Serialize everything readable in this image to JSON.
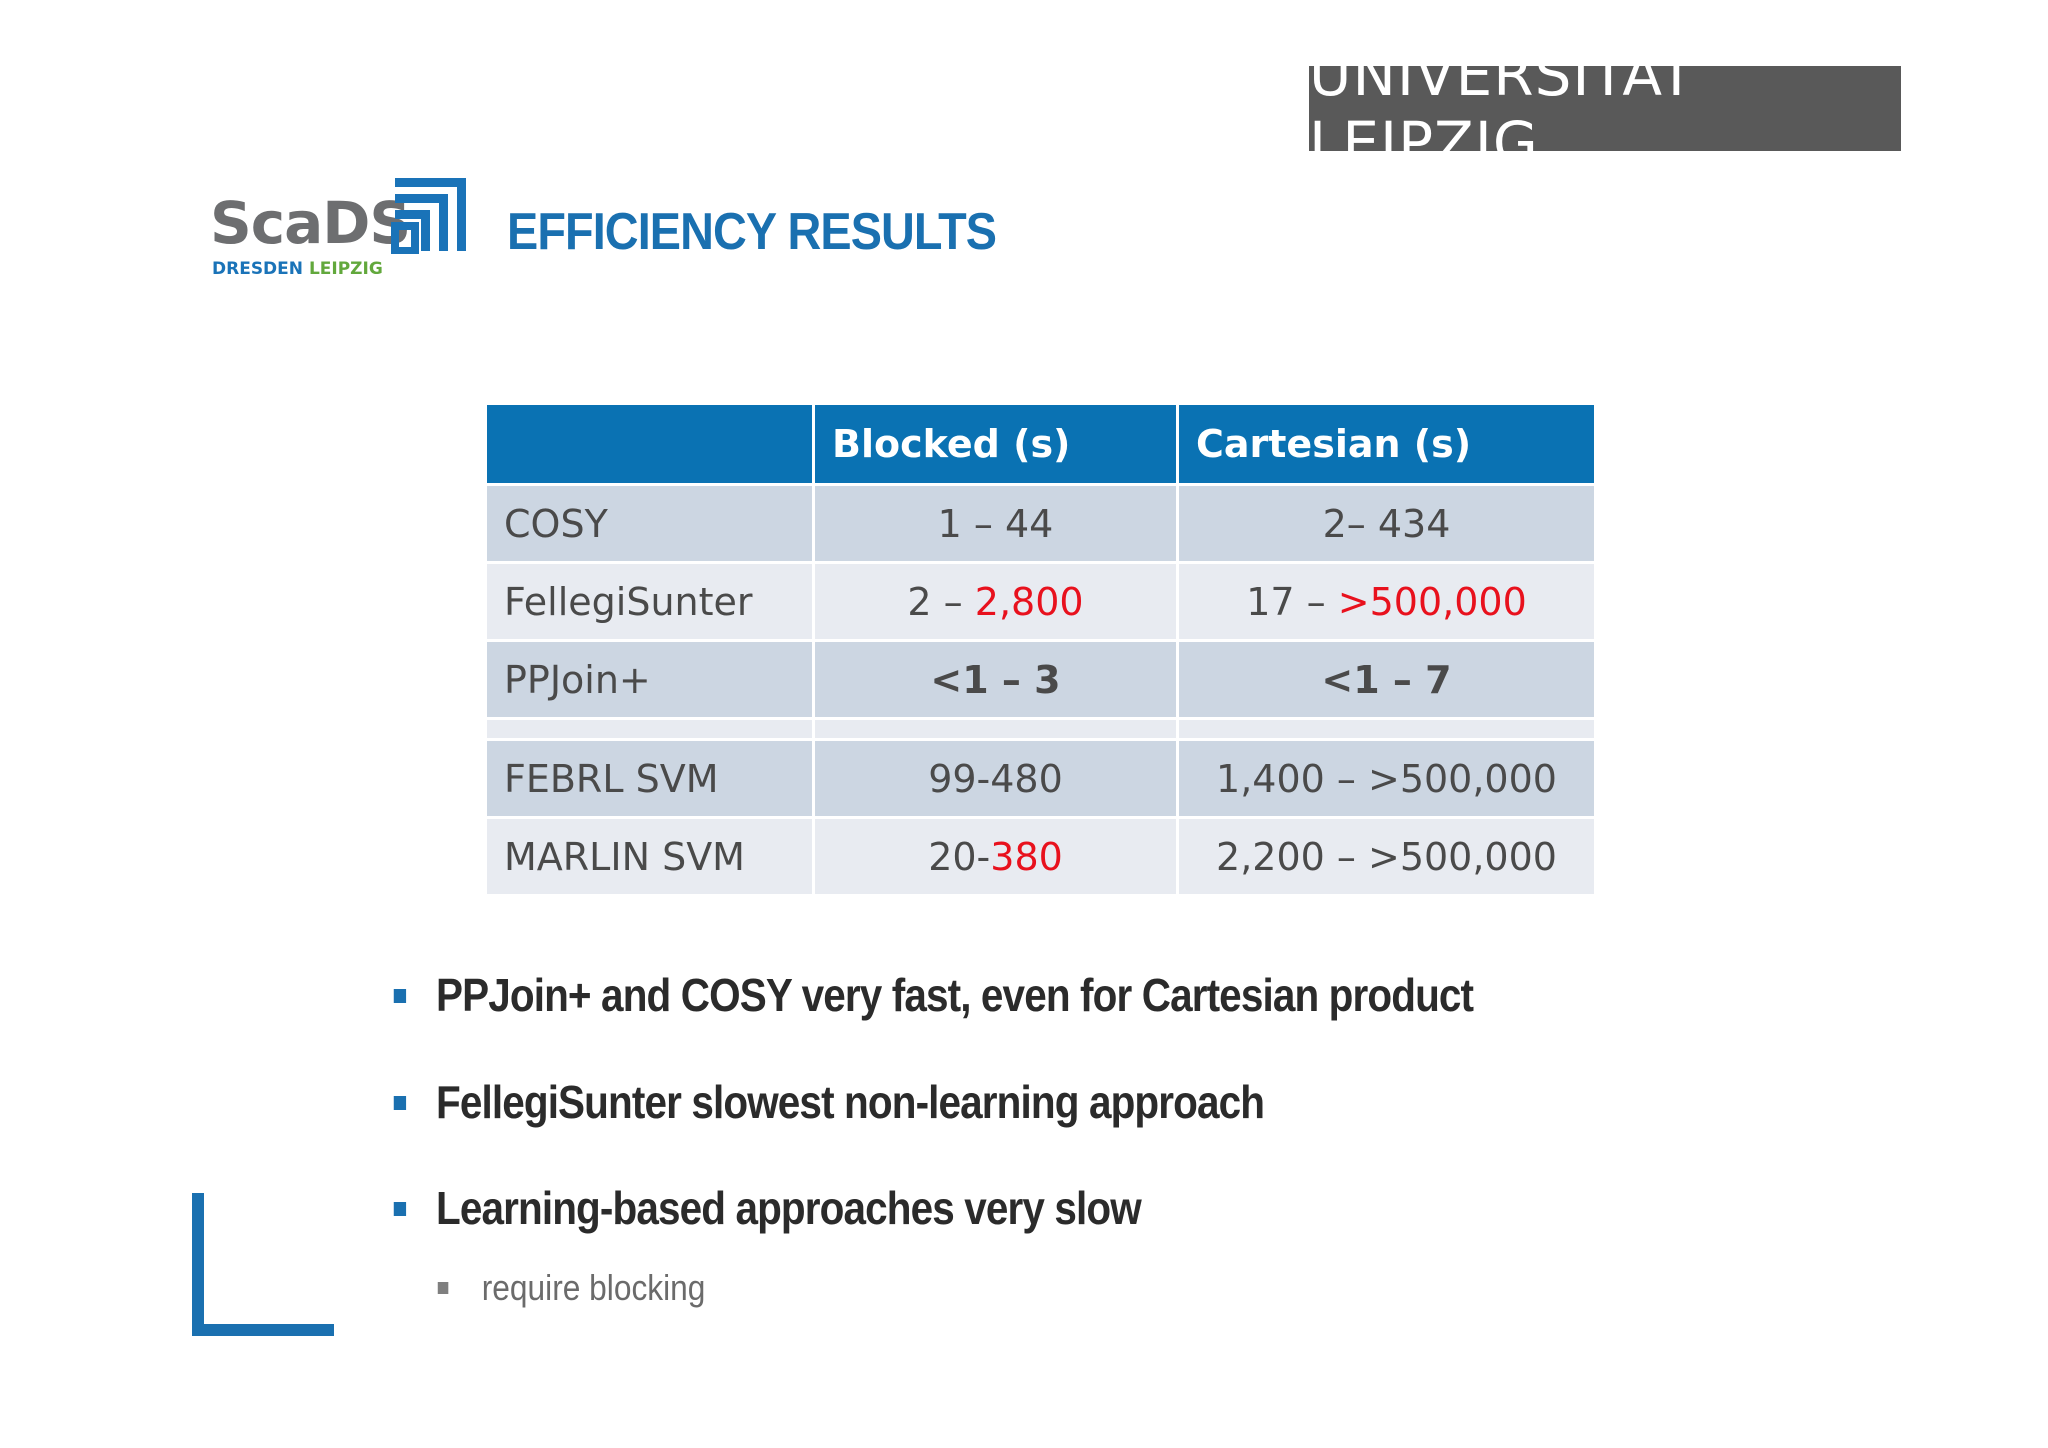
{
  "header": {
    "university_logo": "UNIVERSITÄT LEIPZIG",
    "scads_logo": {
      "name": "ScaDS",
      "city1": "DRESDEN",
      "city2": "LEIPZIG"
    },
    "title": "EFFICIENCY RESULTS"
  },
  "table": {
    "headers": [
      "",
      "Blocked (s)",
      "Cartesian (s)"
    ],
    "rows": [
      {
        "name": "COSY",
        "blocked": "1 –  44",
        "cartesian": "2–  434"
      },
      {
        "name": "FellegiSunter",
        "blocked_a": "2 – ",
        "blocked_b": "2,800",
        "cartesian_a": "17 –  ",
        "cartesian_b": ">500,000"
      },
      {
        "name": "PPJoin+",
        "blocked": "<1 –  3",
        "cartesian": "<1 –  7"
      },
      {
        "name": "FEBRL SVM",
        "blocked": "99-480",
        "cartesian": "1,400 –  >500,000"
      },
      {
        "name": "MARLIN SVM",
        "blocked_a": "20-",
        "blocked_b": "380",
        "cartesian": "2,200 –  >500,000"
      }
    ]
  },
  "bullets": [
    "PPJoin+ and COSY very fast, even for  Cartesian product",
    "FellegiSunter slowest non-learning approach",
    "Learning-based approaches very slow"
  ],
  "sub_bullets": [
    "require blocking"
  ],
  "colors": {
    "accent": "#1a70b0",
    "header_bg": "#0a72b3",
    "row_dark": "#ccd6e2",
    "row_light": "#e8ebf1",
    "bad": "#e8111d",
    "good": "#1fae4b"
  }
}
